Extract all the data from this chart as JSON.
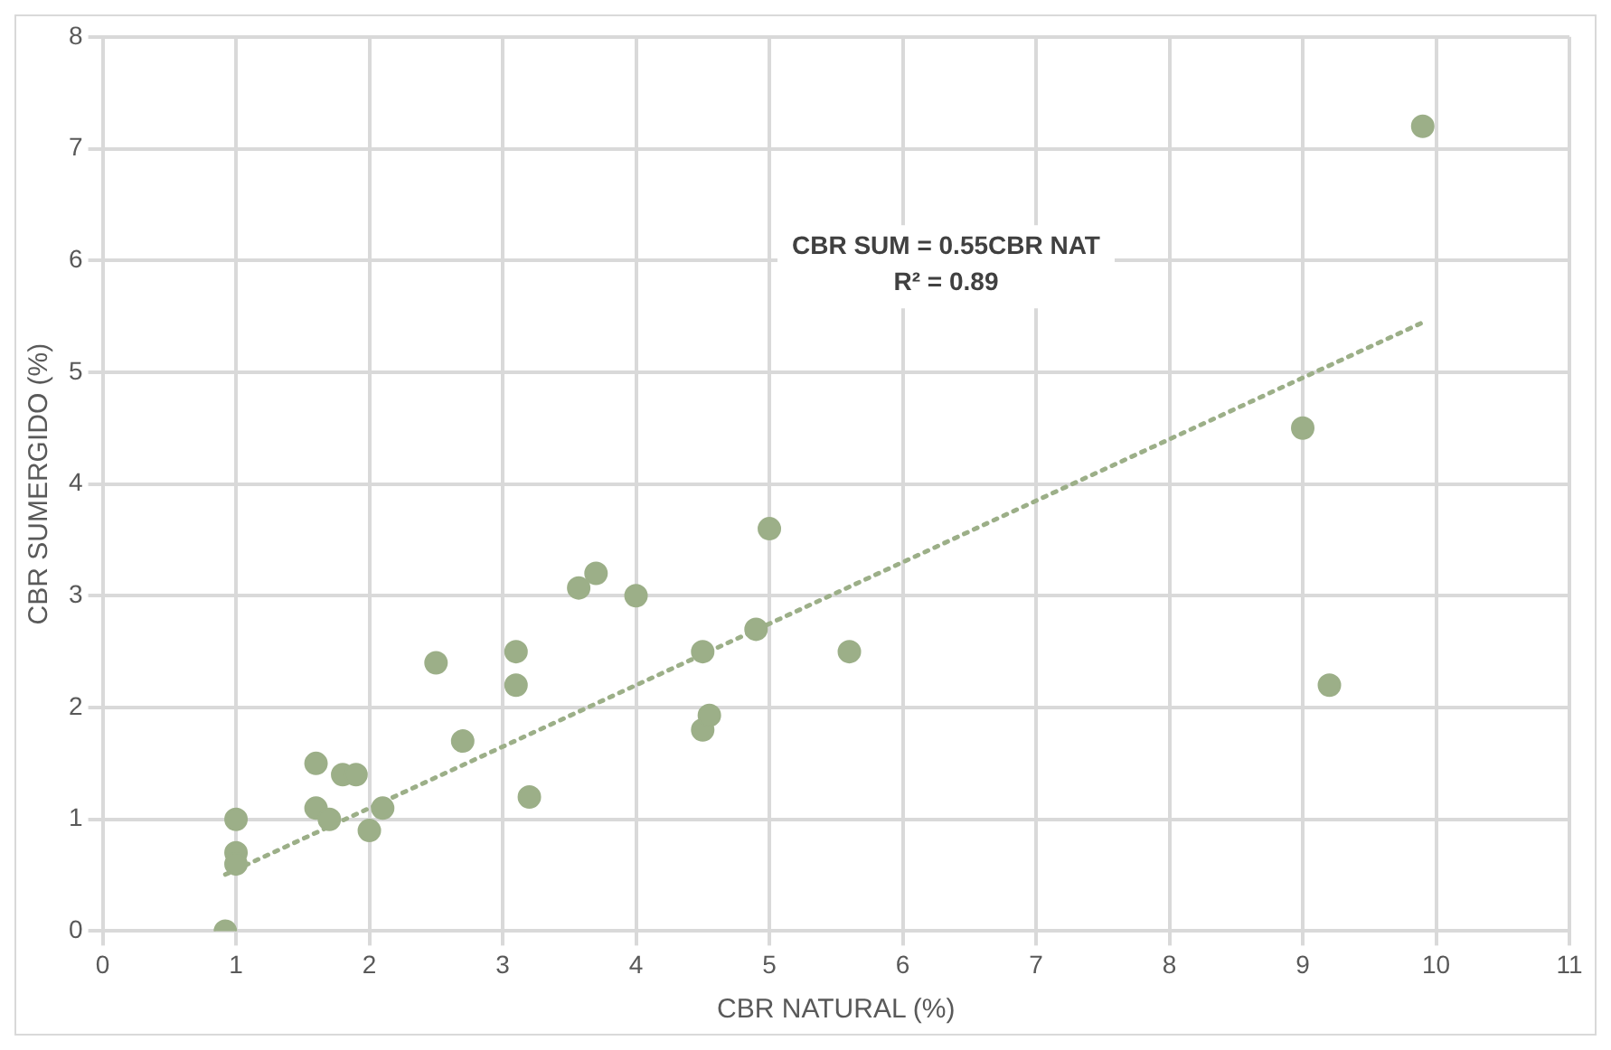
{
  "chart_data": {
    "type": "scatter",
    "xlabel": "CBR NATURAL (%)",
    "ylabel": "CBR SUMERGIDO (%)",
    "xlim": [
      0,
      11
    ],
    "xticks": [
      0,
      1,
      2,
      3,
      4,
      5,
      6,
      7,
      8,
      9,
      10,
      11
    ],
    "ylim": [
      0,
      8
    ],
    "yticks": [
      0,
      1,
      2,
      3,
      4,
      5,
      6,
      7,
      8
    ],
    "grid": true,
    "marker": "circle",
    "annotations": [
      "CBR SUM = 0.55CBR NAT",
      "R² = 0.89"
    ],
    "series": [
      {
        "color": "#9caf88",
        "x": [
          0.92,
          1,
          1,
          1,
          1.6,
          1.6,
          1.7,
          1.8,
          1.9,
          2,
          2.1,
          2.5,
          2.7,
          3.1,
          3.1,
          3.2,
          3.57,
          3.7,
          4,
          4.5,
          4.5,
          4.55,
          4.9,
          5,
          5.6,
          9,
          9.2,
          9.9
        ],
        "values": [
          0,
          1,
          0.7,
          0.6,
          1.5,
          1.1,
          1.0,
          1.4,
          1.4,
          0.9,
          1.1,
          2.4,
          1.7,
          2.5,
          2.2,
          1.2,
          3.07,
          3.2,
          3.0,
          2.5,
          1.8,
          1.93,
          2.7,
          3.6,
          2.5,
          4.5,
          2.2,
          7.2
        ]
      },
      {
        "type": "line",
        "color": "#9caf88",
        "line_style": "dotted",
        "marker": "none",
        "x": [
          0.92,
          9.9
        ],
        "values": [
          0.506,
          5.445
        ]
      }
    ]
  }
}
